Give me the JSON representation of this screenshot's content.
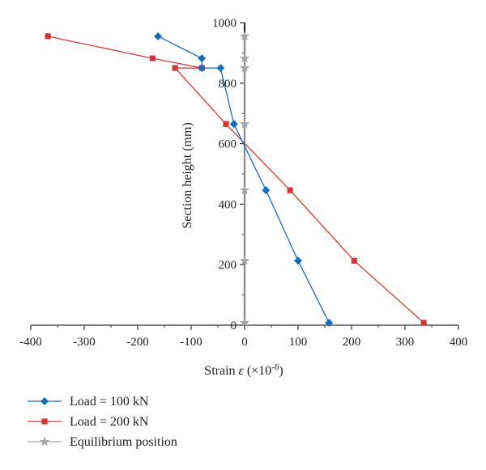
{
  "chart_data": {
    "type": "line",
    "xlabel": "Strain ε (×10⁻⁶)",
    "xlabel_parts": {
      "main": "Strain ",
      "symbol": "ε",
      "open": " (×10",
      "exp": "-6",
      "close": ")"
    },
    "ylabel": "Section height (mm)",
    "xlim": [
      -400,
      400
    ],
    "ylim": [
      0,
      1000
    ],
    "x_ticks": [
      -400,
      -300,
      -200,
      -100,
      0,
      100,
      200,
      300,
      400
    ],
    "y_ticks": [
      0,
      200,
      400,
      600,
      800,
      1000
    ],
    "x_tick_labels": [
      "-400",
      "-300",
      "-200",
      "-100",
      "0",
      "100",
      "200",
      "300",
      "400"
    ],
    "y_tick_labels": [
      "0",
      "200",
      "400",
      "600",
      "800",
      "1000"
    ],
    "grid": false,
    "legend_position": "bottom-left",
    "series": [
      {
        "name": "Load = 100 kN",
        "color": "#1a6db5",
        "marker": "diamond",
        "points": [
          [
            158,
            8
          ],
          [
            100,
            213
          ],
          [
            40,
            446
          ],
          [
            -20,
            665
          ],
          [
            -45,
            850
          ],
          [
            -80,
            850
          ],
          [
            -80,
            882
          ],
          [
            -162,
            955
          ]
        ]
      },
      {
        "name": "Load = 200 kN",
        "color": "#d0373a",
        "marker": "square",
        "points": [
          [
            335,
            8
          ],
          [
            205,
            213
          ],
          [
            85,
            446
          ],
          [
            -35,
            665
          ],
          [
            -130,
            850
          ],
          [
            -80,
            850
          ],
          [
            -172,
            882
          ],
          [
            -368,
            955
          ]
        ]
      },
      {
        "name": "Equilibrium position",
        "color": "#a6a6a6",
        "marker": "star",
        "points": [
          [
            0,
            8
          ],
          [
            0,
            213
          ],
          [
            0,
            446
          ],
          [
            0,
            665
          ],
          [
            0,
            850
          ],
          [
            0,
            882
          ],
          [
            0,
            955
          ]
        ]
      }
    ]
  }
}
